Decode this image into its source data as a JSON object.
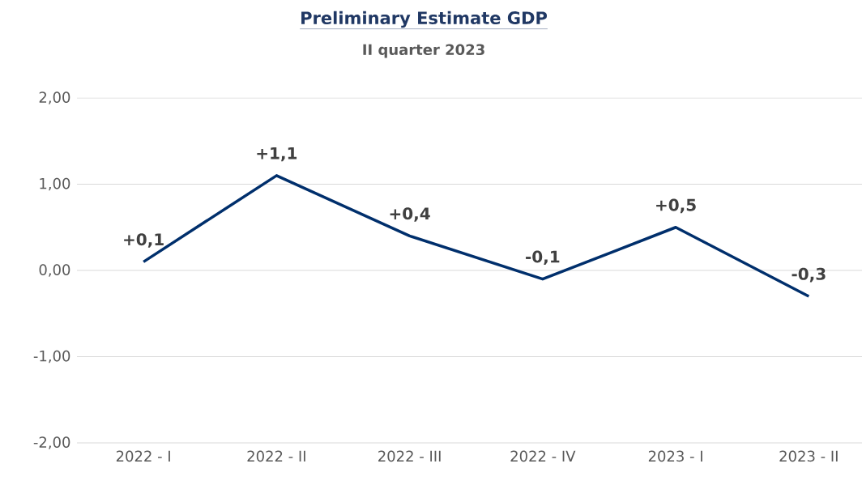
{
  "chart_data": {
    "type": "line",
    "title": "Preliminary Estimate GDP",
    "subtitle": "II quarter 2023",
    "categories": [
      "2022 - I",
      "2022 - II",
      "2022 - III",
      "2022 - IV",
      "2023 - I",
      "2023 - II"
    ],
    "values": [
      0.1,
      1.1,
      0.4,
      -0.1,
      0.5,
      -0.3
    ],
    "value_labels": [
      "+0,1",
      "+1,1",
      "+0,4",
      "-0,1",
      "+0,5",
      "-0,3"
    ],
    "color": "#002f6c",
    "ylim": [
      -2,
      2
    ],
    "yticks": [
      {
        "value": -2,
        "label": "-2,00"
      },
      {
        "value": -1,
        "label": "-1,00"
      },
      {
        "value": 0,
        "label": "0,00"
      },
      {
        "value": 1,
        "label": "1,00"
      },
      {
        "value": 2,
        "label": "2,00"
      }
    ],
    "grid": "y"
  }
}
